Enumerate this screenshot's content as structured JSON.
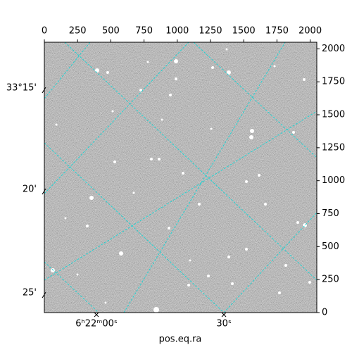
{
  "chart_data": {
    "type": "image",
    "xlabel": "pos.eq.ra",
    "xlim": [
      0,
      2050
    ],
    "ylim": [
      0,
      2050
    ],
    "xticks": [
      0,
      250,
      500,
      750,
      1000,
      1250,
      1500,
      1750,
      2000
    ],
    "yticks": [
      0,
      250,
      500,
      750,
      1000,
      1250,
      1500,
      1750,
      2000
    ],
    "ra_ticks": [
      {
        "value": 392,
        "label": "6ʰ22ᵐ00ˢ"
      },
      {
        "value": 1351,
        "label": "30ˢ"
      }
    ],
    "dec_ticks": [
      {
        "value": 1687,
        "label": "33°15'"
      },
      {
        "value": 918,
        "label": "20'"
      },
      {
        "value": 133,
        "label": "25'"
      }
    ],
    "grid_color": "#22d3d3"
  }
}
